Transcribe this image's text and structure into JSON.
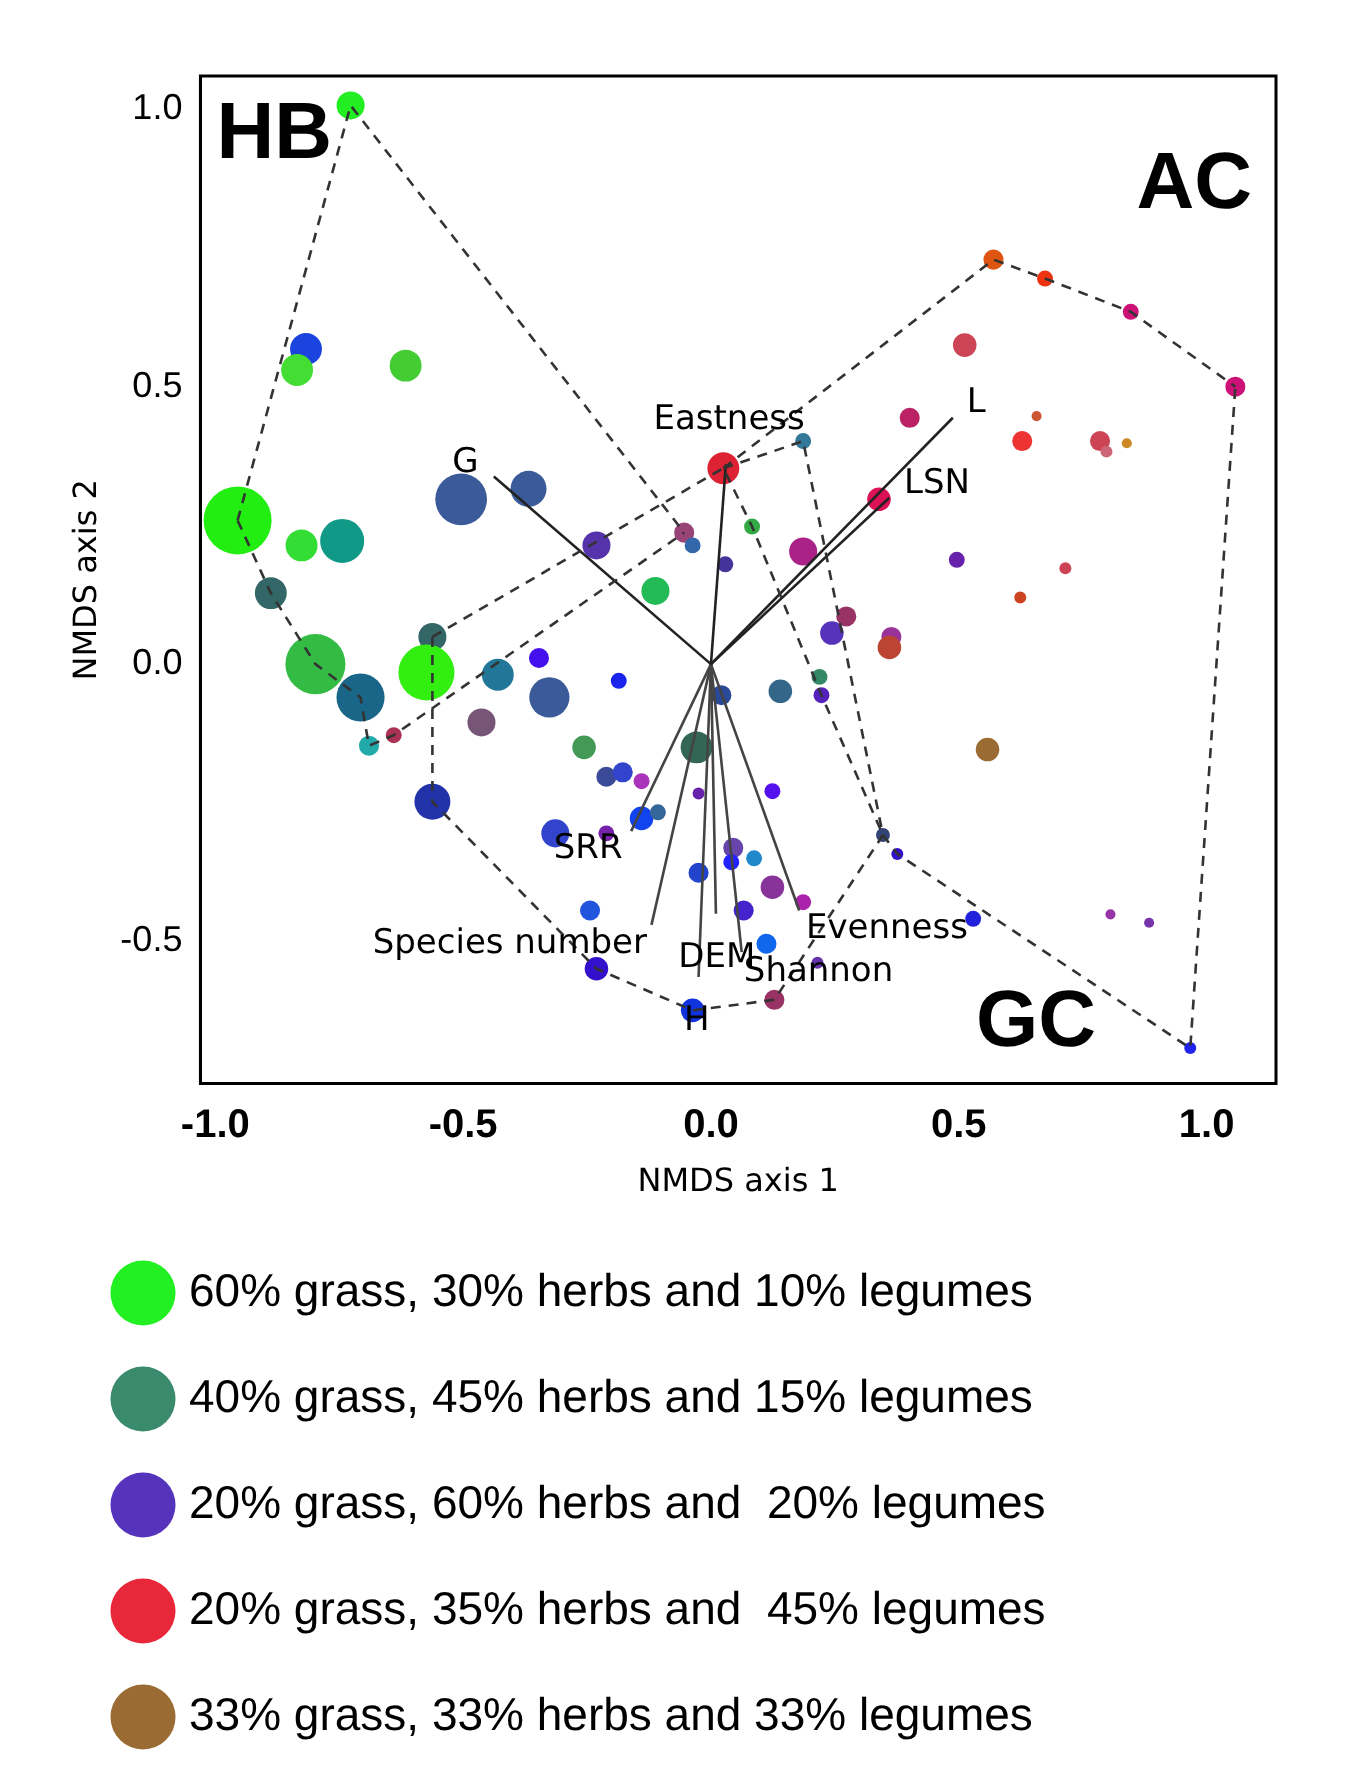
{
  "chart_data": {
    "type": "bubble",
    "xlabel": "NMDS axis 1",
    "ylabel": "NMDS axis 2",
    "xlim": [
      -1.03,
      1.14
    ],
    "ylim": [
      -0.756,
      1.06
    ],
    "xticks": [
      {
        "value": -1,
        "label": "-1.0"
      },
      -0.5,
      {
        "value": 0,
        "label": "0.0"
      },
      0.5,
      {
        "value": 1,
        "label": "1.0"
      }
    ],
    "yticks": [
      -0.5,
      {
        "value": 0,
        "label": "0.0"
      },
      0.5,
      {
        "value": 1,
        "label": "1.0"
      }
    ],
    "grid": false,
    "legend": "bottom",
    "annotations": [
      "HB",
      "AC",
      "GC",
      {
        "text": "G",
        "x": -0.438,
        "y": 0.338
      },
      {
        "text": "Eastness",
        "x": 0.03,
        "y": 0.36
      },
      {
        "text": "L",
        "x": 0.488,
        "y": 0.444
      },
      {
        "text": "LSN",
        "x": 0.36,
        "y": 0.3
      },
      {
        "text": "SRR",
        "x": -0.161,
        "y": -0.301
      },
      {
        "text": "Species number",
        "x": -0.12,
        "y": -0.47
      },
      {
        "text": "DEM",
        "x": 0.01,
        "y": -0.45
      },
      {
        "text": "H",
        "x": -0.025,
        "y": -0.564
      },
      {
        "text": "Shannon",
        "x": 0.062,
        "y": -0.519
      },
      {
        "text": "Evenness",
        "x": 0.178,
        "y": -0.444
      }
    ],
    "series": [
      {
        "name": "60% grass, 30% herbs and 10% legumes",
        "color": "#22f022",
        "x": [
          -0.727,
          -0.835,
          -0.616,
          -0.955,
          -0.826,
          -0.112,
          -0.798,
          -0.574,
          0.083,
          -0.256
        ],
        "values": [
          1.007,
          0.53,
          0.538,
          0.259,
          0.214,
          0.132,
          0.0,
          -0.015,
          0.248,
          -0.15
        ],
        "sizes": [
          0.17,
          0.22,
          0.22,
          1,
          0.22,
          0.17,
          0.78,
          0.68,
          0.055,
          0.12
        ],
        "colors": [
          "#22ee22",
          "#44dd33",
          "#44cc33",
          "#22ee11",
          "#33dd33",
          "#22bb55",
          "#33bb44",
          "#33ee11",
          "#33aa44",
          "#449955"
        ]
      },
      {
        "name": "40% grass, 45% herbs and 15% legumes",
        "color": "#3a8a6e",
        "x": [
          -0.744,
          -0.888,
          -0.707,
          -0.69,
          -0.562,
          -0.43,
          0.186,
          0.219,
          0.14,
          -0.029,
          -0.107,
          0.087,
          0.347
        ],
        "values": [
          0.222,
          0.128,
          -0.06,
          -0.147,
          0.049,
          -0.019,
          0.402,
          -0.023,
          -0.049,
          -0.15,
          -0.267,
          -0.35,
          -0.308
        ],
        "sizes": [
          0.42,
          0.22,
          0.5,
          0.087,
          0.17,
          0.22,
          0.055,
          0.055,
          0.12,
          0.22,
          0.055,
          0.055,
          0.042
        ],
        "colors": [
          "#119988",
          "#336666",
          "#1a6688",
          "#22aaaa",
          "#336666",
          "#227799",
          "#337799",
          "#338866",
          "#336688",
          "#336655",
          "#336699",
          "#2288cc",
          "#334477"
        ]
      },
      {
        "name": "20% grass, 60% herbs and  20% legumes",
        "color": "#5533bb",
        "x": [
          -0.817,
          -0.504,
          -0.368,
          -0.231,
          -0.037,
          0.029,
          0.244,
          0.223,
          0.021,
          0.124,
          0.376,
          0.045,
          0.041,
          0.066,
          0.529,
          0.806,
          0.884,
          0.112,
          0.215,
          0.967,
          -0.347,
          -0.326,
          -0.186,
          -0.211,
          -0.178,
          -0.562,
          -0.14,
          -0.314,
          -0.211,
          -0.244,
          -0.231,
          -0.037,
          -0.025,
          -0.025,
          0.124,
          0.186,
          0.496,
          -0.14,
          -0.463
        ],
        "values": [
          0.568,
          0.297,
          0.316,
          0.214,
          0.214,
          0.18,
          0.056,
          -0.056,
          -0.056,
          -0.229,
          -0.342,
          -0.331,
          -0.357,
          -0.444,
          -0.459,
          -0.451,
          -0.466,
          -0.504,
          -0.538,
          -0.692,
          0.011,
          -0.06,
          -0.03,
          -0.203,
          -0.195,
          -0.248,
          -0.278,
          -0.305,
          -0.305,
          -0.444,
          -0.549,
          -0.624,
          -0.233,
          -0.376,
          -0.402,
          -0.429,
          0.188,
          -0.211,
          -0.105
        ],
        "sizes": [
          0.22,
          0.58,
          0.28,
          0.17,
          0.055,
          0.055,
          0.12,
          0.055,
          0.087,
          0.055,
          0.031,
          0.087,
          0.055,
          0.087,
          0.055,
          0.022,
          0.022,
          0.087,
          0.031,
          0.031,
          0.087,
          0.35,
          0.055,
          0.087,
          0.087,
          0.28,
          0.12,
          0.17,
          0.055,
          0.087,
          0.12,
          0.12,
          0.031,
          0.087,
          0.12,
          0.055,
          0.055,
          0.055,
          0.17
        ],
        "colors": [
          "#1a44dd",
          "#3a5a99",
          "#3a5a99",
          "#5533aa",
          "#3366aa",
          "#443399",
          "#5533bb",
          "#5522bb",
          "#2a4a99",
          "#5511ee",
          "#3311cc",
          "#6644aa",
          "#2222ff",
          "#4422cc",
          "#2222dd",
          "#9933aa",
          "#7733aa",
          "#1166ee",
          "#6633aa",
          "#2222ee",
          "#4411ee",
          "#3a5a99",
          "#1a22ee",
          "#3a4a99",
          "#3344cc",
          "#2233aa",
          "#1144ee",
          "#3344cc",
          "#7722aa",
          "#2255dd",
          "#3311cc",
          "#1133dd",
          "#6622aa",
          "#2244cc",
          "#883399",
          "#aa22aa",
          "#6622aa",
          "#aa33bb",
          "#775577"
        ]
      },
      {
        "name": "20% grass, 35% herbs and  45% legumes",
        "color": "#e8283a",
        "x": [
          0.025,
          -0.054,
          0.57,
          0.674,
          0.847,
          1.058,
          0.512,
          0.401,
          0.657,
          0.628,
          0.785,
          0.798,
          0.339,
          0.186,
          0.715,
          0.624,
          0.273,
          0.364,
          0.36,
          0.128,
          -0.64,
          0.839
        ],
        "values": [
          0.353,
          0.237,
          0.729,
          0.695,
          0.635,
          0.5,
          0.575,
          0.444,
          0.447,
          0.402,
          0.402,
          0.383,
          0.297,
          0.203,
          0.173,
          0.12,
          0.086,
          0.049,
          0.03,
          -0.605,
          -0.128,
          0.398
        ],
        "sizes": [
          0.22,
          0.087,
          0.087,
          0.055,
          0.055,
          0.087,
          0.12,
          0.087,
          0.022,
          0.087,
          0.087,
          0.031,
          0.12,
          0.17,
          0.031,
          0.031,
          0.087,
          0.087,
          0.12,
          0.087,
          0.055,
          0.022
        ],
        "colors": [
          "#dd2233",
          "#994477",
          "#dd5511",
          "#ee3311",
          "#cc1177",
          "#cc1177",
          "#cc4455",
          "#bb2266",
          "#cc5533",
          "#ee3333",
          "#cc4455",
          "#cc6677",
          "#dd1155",
          "#aa2288",
          "#cc4455",
          "#cc4422",
          "#993366",
          "#993399",
          "#bb4433",
          "#993366",
          "#aa3355",
          "#cc8822"
        ]
      },
      {
        "name": "33% grass, 33% herbs and 33% legumes",
        "color": "#9a6c34",
        "x": [
          0.558
        ],
        "values": [
          -0.154
        ],
        "sizes": [
          0.12
        ]
      },
      {
        "type": "line",
        "color": "#333333",
        "line_style": "dashed",
        "x": [
          -0.955,
          -0.727,
          -0.054
        ],
        "values": [
          0.259,
          1.007,
          0.237
        ]
      },
      {
        "type": "line",
        "color": "#333333",
        "line_style": "dashed",
        "x": [
          -0.955,
          -0.888,
          -0.798,
          -0.707,
          -0.69,
          -0.64,
          -0.054
        ],
        "values": [
          0.259,
          0.128,
          0.0,
          -0.06,
          -0.147,
          -0.128,
          0.237
        ]
      },
      {
        "type": "line",
        "color": "#333333",
        "line_style": "dashed",
        "x": [
          -0.562,
          0.025,
          0.083,
          0.223,
          0.347
        ],
        "values": [
          0.049,
          0.353,
          0.248,
          -0.056,
          -0.308
        ]
      },
      {
        "type": "line",
        "color": "#333333",
        "line_style": "dashed",
        "x": [
          -0.562,
          -0.562,
          -0.231,
          -0.037,
          0.128,
          0.347
        ],
        "values": [
          0.049,
          -0.248,
          -0.549,
          -0.624,
          -0.605,
          -0.308
        ]
      },
      {
        "type": "line",
        "color": "#333333",
        "line_style": "dashed",
        "x": [
          0.025,
          0.57,
          0.674,
          0.847,
          1.058
        ],
        "values": [
          0.353,
          0.729,
          0.695,
          0.635,
          0.5
        ]
      },
      {
        "type": "line",
        "color": "#333333",
        "line_style": "dashed",
        "x": [
          0.025,
          0.186,
          0.347,
          0.376,
          0.967,
          1.058
        ],
        "values": [
          0.353,
          0.402,
          -0.308,
          -0.342,
          -0.692,
          0.5
        ]
      },
      {
        "type": "line",
        "color": "#222222",
        "x": [
          0,
          -0.438
        ],
        "values": [
          0,
          0.338
        ]
      },
      {
        "type": "line",
        "color": "#222222",
        "x": [
          0,
          0.03
        ],
        "values": [
          0,
          0.36
        ]
      },
      {
        "type": "line",
        "color": "#222222",
        "x": [
          0,
          0.488
        ],
        "values": [
          0,
          0.444
        ]
      },
      {
        "type": "line",
        "color": "#222222",
        "x": [
          0,
          0.36
        ],
        "values": [
          0,
          0.3
        ]
      },
      {
        "type": "line",
        "color": "#444444",
        "x": [
          -0.161,
          0
        ],
        "values": [
          -0.301,
          0
        ]
      },
      {
        "type": "line",
        "color": "#444444",
        "x": [
          -0.12,
          0
        ],
        "values": [
          -0.47,
          0
        ]
      },
      {
        "type": "line",
        "color": "#444444",
        "x": [
          0,
          0.01
        ],
        "values": [
          0,
          -0.45
        ]
      },
      {
        "type": "line",
        "color": "#444444",
        "x": [
          -0.025,
          0
        ],
        "values": [
          -0.564,
          0
        ]
      },
      {
        "type": "line",
        "color": "#444444",
        "x": [
          0,
          0.062
        ],
        "values": [
          0,
          -0.519
        ]
      },
      {
        "type": "line",
        "color": "#444444",
        "x": [
          0,
          0.178
        ],
        "values": [
          0,
          -0.444
        ]
      }
    ]
  }
}
